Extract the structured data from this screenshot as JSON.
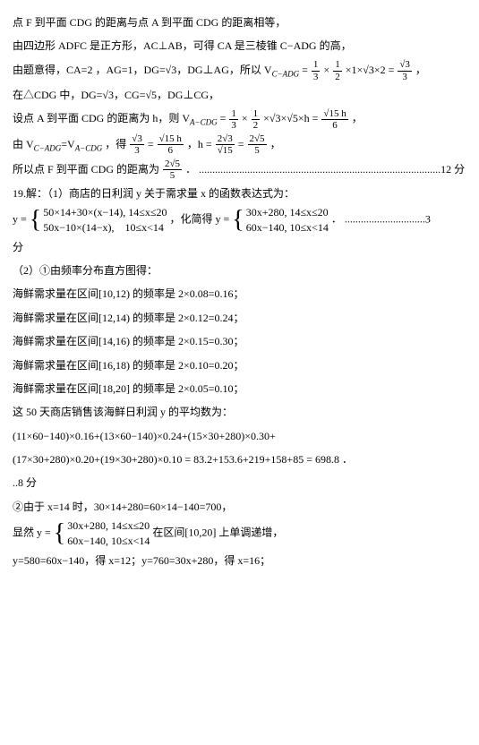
{
  "p1": "点 F 到平面 CDG 的距离与点 A 到平面 CDG 的距离相等，",
  "p2": "由四边形 ADFC 是正方形，AC⊥AB，可得 CA 是三棱锥 C−ADG 的高，",
  "p3a": "由题意得，CA=2 ，AG=1，DG=√3，DG⊥AG，所以 V",
  "p3sub1": "C−ADG",
  "p3b": " = ",
  "f1n": "1",
  "f1d": "3",
  "f2n": "1",
  "f2d": "2",
  "p3c": "×1×√3×2 = ",
  "f3n": "√3",
  "f3d": "3",
  "p3d": " ，",
  "p4": "在△CDG 中，DG=√3，CG=√5，DG⊥CG，",
  "p5a": "设点 A 到平面 CDG 的距离为 h，则 V",
  "p5sub": "A−CDG",
  "p5b": " = ",
  "f4n": "1",
  "f4d": "3",
  "f5n": "1",
  "f5d": "2",
  "p5c": "×√3×√5×h = ",
  "f6n": "√15 h",
  "f6d": "6",
  "p5d": " ，",
  "p6a": "由 V",
  "p6sub1": "C−ADG",
  "p6b": "=V",
  "p6sub2": "A−CDG",
  "p6c": " ，得 ",
  "f7n": "√3",
  "f7d": "3",
  "p6d": " = ",
  "f8n": "√15 h",
  "f8d": "6",
  "p6e": " ，h = ",
  "f9n": "2√3",
  "f9d": "√15",
  "p6f": " = ",
  "f10n": "2√5",
  "f10d": "5",
  "p6g": " ，",
  "p7a": "所以点 F 到平面 CDG 的距离为 ",
  "f11n": "2√5",
  "f11d": "5",
  "p7b": " ．",
  "dots1": "..........................................................................................12 分",
  "p8": "19.解：（1）商店的日利润 y 关于需求量 x 的函数表达式为：",
  "p9a": "y = ",
  "c1r1": "50×14+30×(x−14), 14≤x≤20",
  "c1r2": "50x−10×(14−x),　10≤x<14",
  "p9b": " ，化简得 y = ",
  "c2r1": "30x+280, 14≤x≤20",
  "c2r2": "60x−140, 10≤x<14",
  "p9c": " ．",
  "dots2": "..............................3",
  "p10": "分",
  "p11": "（2）①由频率分布直方图得：",
  "p12": "海鲜需求量在区间[10,12) 的频率是 2×0.08=0.16；",
  "p13": "海鲜需求量在区间[12,14) 的频率是 2×0.12=0.24；",
  "p14": "海鲜需求量在区间[14,16) 的频率是 2×0.15=0.30；",
  "p15": "海鲜需求量在区间[16,18) 的频率是 2×0.10=0.20；",
  "p16": "海鲜需求量在区间[18,20] 的频率是 2×0.05=0.10；",
  "p17": "这 50 天商店销售该海鲜日利润 y 的平均数为：",
  "p18": "(11×60−140)×0.16+(13×60−140)×0.24+(15×30+280)×0.30+",
  "p19": "(17×30+280)×0.20+(19×30+280)×0.10 = 83.2+153.6+219+158+85 = 698.8 ．",
  "p20": "..8 分",
  "p21": "②由于 x=14 时，30×14+280=60×14−140=700，",
  "p22a": "显然 y = ",
  "c3r1": "30x+280, 14≤x≤20",
  "c3r2": "60x−140, 10≤x<14",
  "p22b": " 在区间[10,20] 上单调递增，",
  "p23": "y=580=60x−140，得 x=12；y=760=30x+280，得 x=16；"
}
